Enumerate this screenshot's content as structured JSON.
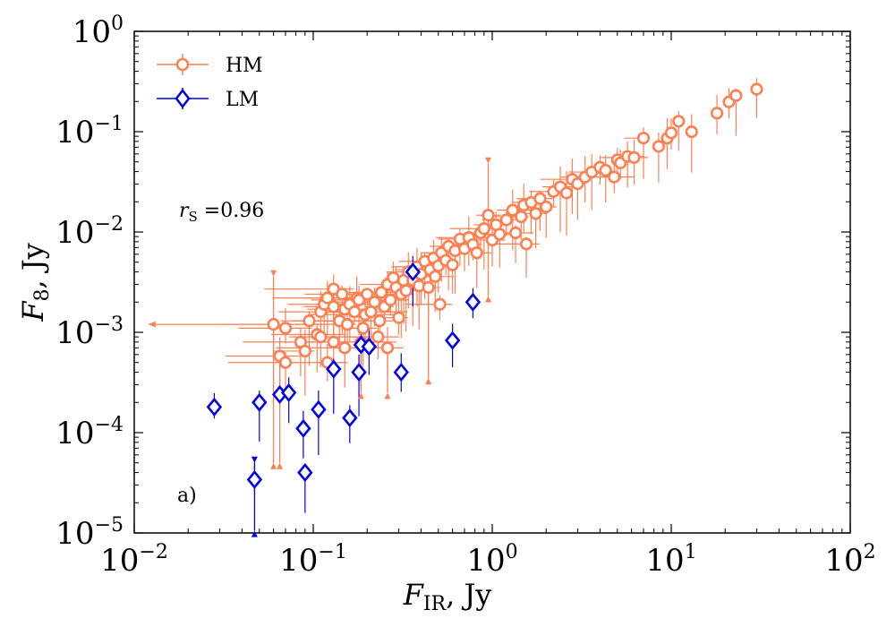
{
  "chart_data": {
    "type": "scatter",
    "xscale": "log",
    "yscale": "log",
    "xlim": [
      0.01,
      100
    ],
    "ylim": [
      1e-05,
      1
    ],
    "xlabel": {
      "main": "F",
      "sub": "IR",
      "unit": ", Jy"
    },
    "ylabel": {
      "main": "F",
      "sub": "8",
      "unit": ", Jy"
    },
    "x_ticks": [
      {
        "value": 0.01,
        "base": "10",
        "exp": "−2"
      },
      {
        "value": 0.1,
        "base": "10",
        "exp": "−1"
      },
      {
        "value": 1,
        "base": "10",
        "exp": "0"
      },
      {
        "value": 10,
        "base": "10",
        "exp": "1"
      },
      {
        "value": 100,
        "base": "10",
        "exp": "2"
      }
    ],
    "y_ticks": [
      {
        "value": 1e-05,
        "base": "10",
        "exp": "−5"
      },
      {
        "value": 0.0001,
        "base": "10",
        "exp": "−4"
      },
      {
        "value": 0.001,
        "base": "10",
        "exp": "−3"
      },
      {
        "value": 0.01,
        "base": "10",
        "exp": "−2"
      },
      {
        "value": 0.1,
        "base": "10",
        "exp": "−1"
      },
      {
        "value": 1,
        "base": "10",
        "exp": "0"
      }
    ],
    "annotations": {
      "rs_label": "r",
      "rs_sub": "S",
      "rs_value": " =0.96",
      "panel": "a)"
    },
    "legend_position": "top-left",
    "series": [
      {
        "name": "HM",
        "color": "#ff7f50",
        "marker": "circle",
        "points": [
          [
            0.06,
            0.0012
          ],
          [
            0.07,
            0.0011
          ],
          [
            0.065,
            0.00058
          ],
          [
            0.07,
            0.0005
          ],
          [
            0.085,
            0.0008
          ],
          [
            0.09,
            0.00065
          ],
          [
            0.095,
            0.0013
          ],
          [
            0.105,
            0.00095
          ],
          [
            0.11,
            0.0009
          ],
          [
            0.12,
            0.0005
          ],
          [
            0.11,
            0.0016
          ],
          [
            0.115,
            0.0019
          ],
          [
            0.12,
            0.0022
          ],
          [
            0.13,
            0.0018
          ],
          [
            0.13,
            0.0008
          ],
          [
            0.13,
            0.0027
          ],
          [
            0.14,
            0.0013
          ],
          [
            0.145,
            0.0024
          ],
          [
            0.15,
            0.0017
          ],
          [
            0.15,
            0.0007
          ],
          [
            0.155,
            0.0012
          ],
          [
            0.16,
            0.0019
          ],
          [
            0.17,
            0.0016
          ],
          [
            0.175,
            0.0022
          ],
          [
            0.18,
            0.0021
          ],
          [
            0.185,
            0.0008
          ],
          [
            0.19,
            0.0011
          ],
          [
            0.195,
            0.0015
          ],
          [
            0.2,
            0.0024
          ],
          [
            0.21,
            0.0016
          ],
          [
            0.22,
            0.002
          ],
          [
            0.23,
            0.0009
          ],
          [
            0.235,
            0.0013
          ],
          [
            0.24,
            0.0025
          ],
          [
            0.25,
            0.0018
          ],
          [
            0.26,
            0.0007
          ],
          [
            0.26,
            0.003
          ],
          [
            0.27,
            0.0021
          ],
          [
            0.28,
            0.0035
          ],
          [
            0.29,
            0.0028
          ],
          [
            0.3,
            0.0014
          ],
          [
            0.31,
            0.0024
          ],
          [
            0.32,
            0.0033
          ],
          [
            0.33,
            0.0026
          ],
          [
            0.34,
            0.004
          ],
          [
            0.36,
            0.0033
          ],
          [
            0.38,
            0.0045
          ],
          [
            0.39,
            0.0029
          ],
          [
            0.4,
            0.0038
          ],
          [
            0.42,
            0.0051
          ],
          [
            0.44,
            0.0028
          ],
          [
            0.45,
            0.0042
          ],
          [
            0.47,
            0.0055
          ],
          [
            0.48,
            0.0036
          ],
          [
            0.5,
            0.0046
          ],
          [
            0.51,
            0.0019
          ],
          [
            0.52,
            0.0062
          ],
          [
            0.55,
            0.0052
          ],
          [
            0.57,
            0.0072
          ],
          [
            0.6,
            0.0047
          ],
          [
            0.62,
            0.0065
          ],
          [
            0.66,
            0.0085
          ],
          [
            0.7,
            0.0068
          ],
          [
            0.74,
            0.0088
          ],
          [
            0.78,
            0.0075
          ],
          [
            0.82,
            0.0062
          ],
          [
            0.86,
            0.0098
          ],
          [
            0.9,
            0.0108
          ],
          [
            0.95,
            0.0147
          ],
          [
            1.0,
            0.0083
          ],
          [
            1.05,
            0.0118
          ],
          [
            1.1,
            0.0095
          ],
          [
            1.2,
            0.0132
          ],
          [
            1.3,
            0.0165
          ],
          [
            1.35,
            0.0098
          ],
          [
            1.45,
            0.0142
          ],
          [
            1.5,
            0.0185
          ],
          [
            1.55,
            0.0076
          ],
          [
            1.65,
            0.0197
          ],
          [
            1.75,
            0.0153
          ],
          [
            1.85,
            0.0215
          ],
          [
            2.0,
            0.0178
          ],
          [
            2.2,
            0.0253
          ],
          [
            2.4,
            0.0282
          ],
          [
            2.6,
            0.0245
          ],
          [
            2.8,
            0.0335
          ],
          [
            3.0,
            0.0303
          ],
          [
            3.3,
            0.0352
          ],
          [
            3.6,
            0.0396
          ],
          [
            4.0,
            0.0442
          ],
          [
            4.3,
            0.0412
          ],
          [
            4.8,
            0.0353
          ],
          [
            5.0,
            0.0524
          ],
          [
            5.2,
            0.0488
          ],
          [
            5.7,
            0.0566
          ],
          [
            6.2,
            0.0552
          ],
          [
            7.0,
            0.0863
          ],
          [
            8.5,
            0.0713
          ],
          [
            9.5,
            0.0862
          ],
          [
            10.0,
            0.0973
          ],
          [
            11.0,
            0.127
          ],
          [
            13.0,
            0.0998
          ],
          [
            18.0,
            0.153
          ],
          [
            21.0,
            0.198
          ],
          [
            23.0,
            0.229
          ],
          [
            30.0,
            0.265
          ]
        ],
        "upper_limits": [
          {
            "x": 0.06,
            "y": 0.0012,
            "to": 5e-05
          },
          {
            "x": 0.065,
            "y": 0.00058,
            "to": 5e-05
          },
          {
            "x": 0.185,
            "y": 0.0008,
            "to": 0.00025
          },
          {
            "x": 0.26,
            "y": 0.0007,
            "to": 0.00025
          },
          {
            "x": 0.44,
            "y": 0.0028,
            "to": 0.00035
          },
          {
            "x": 0.95,
            "y": 0.0147,
            "to": 0.0023
          }
        ],
        "lower_limits": [
          {
            "x": 0.06,
            "y": 0.0012,
            "to": 0.0036
          },
          {
            "x": 0.95,
            "y": 0.0147,
            "to": 0.048
          }
        ],
        "left_limits": [
          {
            "x": 0.06,
            "y": 0.0012,
            "to": 0.012
          }
        ]
      },
      {
        "name": "LM",
        "color": "#0000ee",
        "marker": "diamond",
        "points": [
          [
            0.028,
            0.00018
          ],
          [
            0.05,
            0.0002
          ],
          [
            0.065,
            0.00024
          ],
          [
            0.073,
            0.00025
          ],
          [
            0.047,
            3.4e-05
          ],
          [
            0.088,
            0.00011
          ],
          [
            0.09,
            4e-05
          ],
          [
            0.107,
            0.00017
          ],
          [
            0.13,
            0.00043
          ],
          [
            0.16,
            0.00014
          ],
          [
            0.18,
            0.0004
          ],
          [
            0.185,
            0.00075
          ],
          [
            0.205,
            0.00072
          ],
          [
            0.31,
            0.0004
          ],
          [
            0.36,
            0.004
          ],
          [
            0.6,
            0.00083
          ],
          [
            0.78,
            0.002
          ]
        ],
        "upper_limits": [
          {
            "x": 0.047,
            "y": 3.4e-05,
            "to": 1.05e-05
          }
        ],
        "lower_limits": [
          {
            "x": 0.047,
            "y": 3.4e-05,
            "to": 5e-05
          }
        ]
      }
    ]
  }
}
